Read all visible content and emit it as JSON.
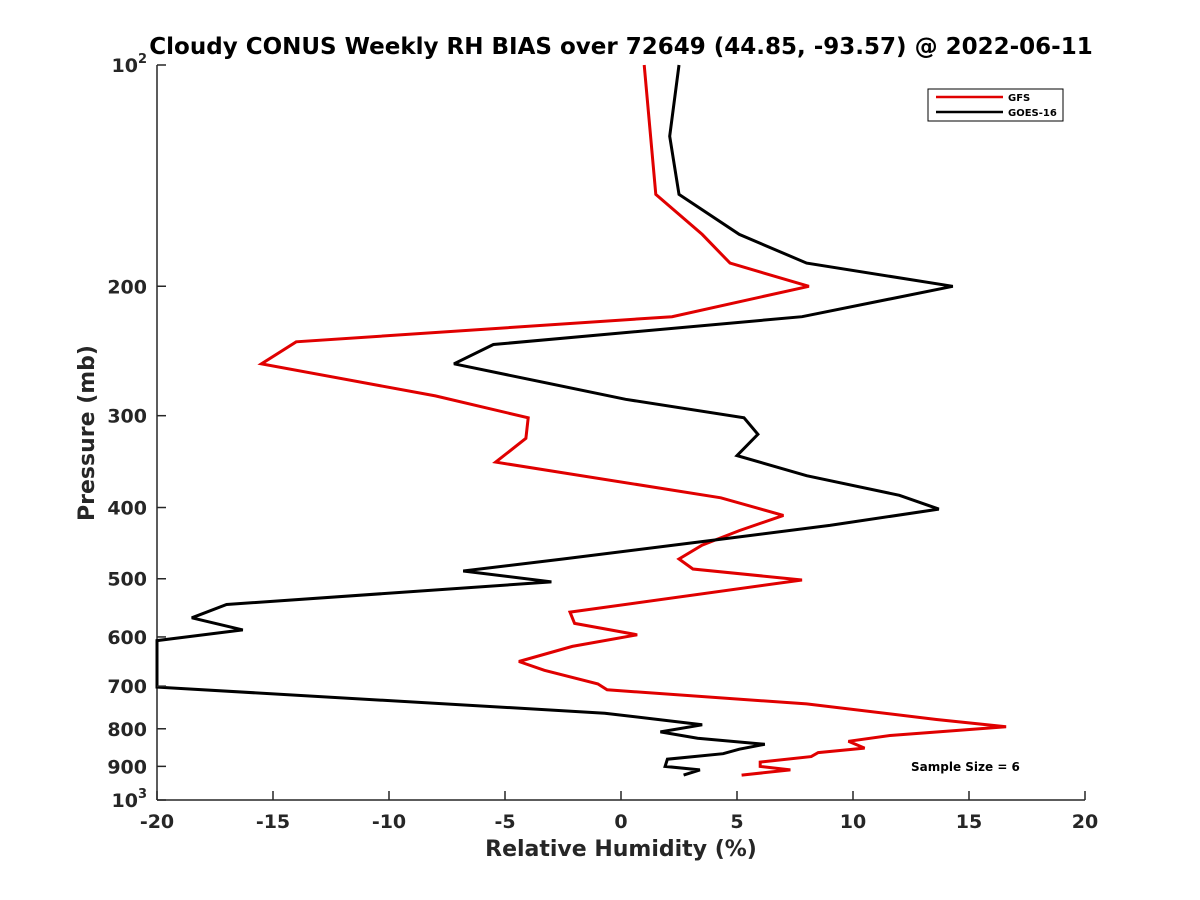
{
  "chart_data": {
    "type": "line",
    "title": "Cloudy CONUS Weekly RH BIAS over 72649 (44.85, -93.57) @ 2022-06-11",
    "xlabel": "Relative Humidity (%)",
    "ylabel": "Pressure (mb)",
    "xlim": [
      -20,
      20
    ],
    "ylim": [
      100,
      1000
    ],
    "y_scale": "log",
    "y_direction": "reversed",
    "x_ticks": [
      "-20",
      "-15",
      "-10",
      "-5",
      "0",
      "5",
      "10",
      "15",
      "20"
    ],
    "y_ticks": [
      {
        "value": 100,
        "base": "10",
        "exp": "2"
      },
      {
        "value": 200,
        "label": "200"
      },
      {
        "value": 300,
        "label": "300"
      },
      {
        "value": 400,
        "label": "400"
      },
      {
        "value": 500,
        "label": "500"
      },
      {
        "value": 600,
        "label": "600"
      },
      {
        "value": 700,
        "label": "700"
      },
      {
        "value": 800,
        "label": "800"
      },
      {
        "value": 900,
        "label": "900"
      },
      {
        "value": 1000,
        "base": "10",
        "exp": "3"
      }
    ],
    "grid": false,
    "legend_position": "top-right",
    "annotation": "Sample Size = 6",
    "series": [
      {
        "name": "GFS",
        "color": "#e00000",
        "points": [
          [
            1.0,
            100
          ],
          [
            1.5,
            150
          ],
          [
            3.5,
            170
          ],
          [
            4.7,
            186
          ],
          [
            8.1,
            200
          ],
          [
            2.2,
            220
          ],
          [
            -14.0,
            238
          ],
          [
            -15.5,
            255
          ],
          [
            -8.0,
            282
          ],
          [
            -4.0,
            302
          ],
          [
            -4.1,
            322
          ],
          [
            -5.4,
            347
          ],
          [
            4.3,
            388
          ],
          [
            7.0,
            410
          ],
          [
            5.1,
            430
          ],
          [
            3.5,
            450
          ],
          [
            2.5,
            470
          ],
          [
            3.1,
            485
          ],
          [
            7.8,
            502
          ],
          [
            -2.2,
            555
          ],
          [
            -2.0,
            575
          ],
          [
            0.7,
            596
          ],
          [
            -2.1,
            618
          ],
          [
            -4.4,
            648
          ],
          [
            -3.3,
            666
          ],
          [
            -1.0,
            695
          ],
          [
            -0.6,
            708
          ],
          [
            8.0,
            740
          ],
          [
            13.6,
            777
          ],
          [
            16.6,
            795
          ],
          [
            11.6,
            817
          ],
          [
            9.8,
            832
          ],
          [
            10.5,
            850
          ],
          [
            8.5,
            862
          ],
          [
            8.2,
            873
          ],
          [
            6.0,
            888
          ],
          [
            6.0,
            900
          ],
          [
            7.3,
            910
          ],
          [
            5.2,
            925
          ]
        ]
      },
      {
        "name": "GOES-16",
        "color": "#000000",
        "points": [
          [
            2.5,
            100
          ],
          [
            2.1,
            125
          ],
          [
            2.5,
            150
          ],
          [
            5.1,
            170
          ],
          [
            8.0,
            186
          ],
          [
            14.3,
            200
          ],
          [
            7.8,
            220
          ],
          [
            -5.5,
            240
          ],
          [
            -7.2,
            255
          ],
          [
            0.2,
            285
          ],
          [
            5.3,
            302
          ],
          [
            5.9,
            318
          ],
          [
            5.0,
            340
          ],
          [
            8.0,
            362
          ],
          [
            12.0,
            385
          ],
          [
            13.7,
            402
          ],
          [
            9.0,
            423
          ],
          [
            4.0,
            443
          ],
          [
            -2.5,
            470
          ],
          [
            -6.8,
            488
          ],
          [
            -3.0,
            505
          ],
          [
            -17.0,
            542
          ],
          [
            -18.5,
            565
          ],
          [
            -16.3,
            587
          ],
          [
            -20.0,
            607
          ],
          [
            -20.0,
            702
          ],
          [
            -0.7,
            762
          ],
          [
            3.5,
            790
          ],
          [
            1.7,
            808
          ],
          [
            3.3,
            824
          ],
          [
            6.2,
            840
          ],
          [
            5.1,
            853
          ],
          [
            4.4,
            865
          ],
          [
            2.0,
            880
          ],
          [
            1.9,
            900
          ],
          [
            3.4,
            910
          ],
          [
            2.7,
            925
          ]
        ]
      }
    ]
  }
}
